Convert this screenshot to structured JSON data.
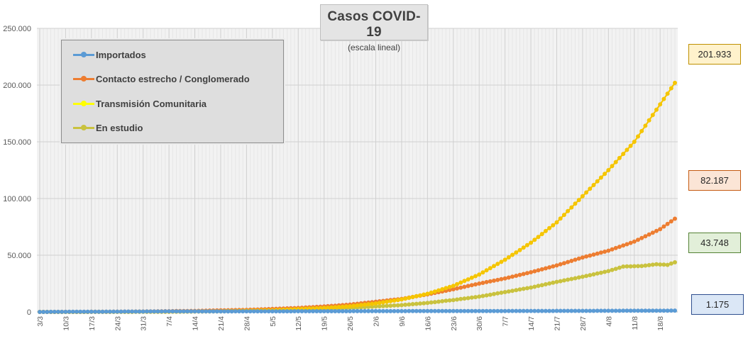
{
  "chart_data": {
    "type": "line",
    "title": "Casos COVID-19",
    "subtitle": "(escala lineal)",
    "xlabel": "",
    "ylabel": "",
    "ylim": [
      0,
      250000
    ],
    "y_ticks": [
      0,
      50000,
      100000,
      150000,
      200000,
      250000
    ],
    "y_tick_labels": [
      "0",
      "50.000",
      "100.000",
      "150.000",
      "200.000",
      "250.000"
    ],
    "x_tick_labels": [
      "3/3",
      "10/3",
      "17/3",
      "24/3",
      "31/3",
      "7/4",
      "14/4",
      "21/4",
      "28/4",
      "5/5",
      "12/5",
      "19/5",
      "26/5",
      "2/6",
      "9/6",
      "16/6",
      "23/6",
      "30/6",
      "7/7",
      "14/7",
      "21/7",
      "28/7",
      "4/8",
      "11/8",
      "18/8"
    ],
    "x_start": "3/3",
    "x_end": "22/8",
    "num_days": 173,
    "grid": true,
    "legend_position": "top-left",
    "series": [
      {
        "name": "Importados",
        "color": "#5b9bd5",
        "last_value_label": "1.175",
        "last_value_bg": "#dbe7f6",
        "last_value_border": "#2f4f8f",
        "anchors": [
          [
            0,
            0
          ],
          [
            20,
            250
          ],
          [
            35,
            420
          ],
          [
            50,
            520
          ],
          [
            70,
            600
          ],
          [
            90,
            680
          ],
          [
            110,
            760
          ],
          [
            130,
            860
          ],
          [
            150,
            960
          ],
          [
            172,
            1175
          ]
        ]
      },
      {
        "name": "Contacto estrecho / Conglomerado",
        "color": "#ed7d31",
        "last_value_label": "82.187",
        "last_value_bg": "#fbe5d6",
        "last_value_border": "#c55a11",
        "anchors": [
          [
            0,
            0
          ],
          [
            14,
            100
          ],
          [
            28,
            400
          ],
          [
            42,
            900
          ],
          [
            56,
            1800
          ],
          [
            63,
            2600
          ],
          [
            70,
            3500
          ],
          [
            77,
            4800
          ],
          [
            84,
            6500
          ],
          [
            91,
            9000
          ],
          [
            98,
            11500
          ],
          [
            105,
            15500
          ],
          [
            112,
            20000
          ],
          [
            119,
            25000
          ],
          [
            126,
            29500
          ],
          [
            133,
            35000
          ],
          [
            140,
            41000
          ],
          [
            147,
            48000
          ],
          [
            154,
            54000
          ],
          [
            161,
            62000
          ],
          [
            168,
            73000
          ],
          [
            172,
            82187
          ]
        ]
      },
      {
        "name": "Transmisión Comunitaria",
        "color": "#f5c500",
        "last_value_label": "201.933",
        "last_value_bg": "#fff2cc",
        "last_value_border": "#bf9000",
        "anchors": [
          [
            0,
            0
          ],
          [
            21,
            50
          ],
          [
            35,
            200
          ],
          [
            49,
            600
          ],
          [
            63,
            1500
          ],
          [
            77,
            3500
          ],
          [
            84,
            5000
          ],
          [
            91,
            7500
          ],
          [
            98,
            11000
          ],
          [
            105,
            16000
          ],
          [
            112,
            23000
          ],
          [
            119,
            33000
          ],
          [
            126,
            46000
          ],
          [
            133,
            61000
          ],
          [
            140,
            79000
          ],
          [
            147,
            102000
          ],
          [
            154,
            125000
          ],
          [
            161,
            150000
          ],
          [
            168,
            183000
          ],
          [
            172,
            201933
          ]
        ]
      },
      {
        "name": "En estudio",
        "color": "#c9c23e",
        "last_value_label": "43.748",
        "last_value_bg": "#e2efd9",
        "last_value_border": "#548235",
        "anchors": [
          [
            0,
            0
          ],
          [
            21,
            50
          ],
          [
            35,
            200
          ],
          [
            49,
            500
          ],
          [
            63,
            1000
          ],
          [
            77,
            2500
          ],
          [
            84,
            3500
          ],
          [
            91,
            4800
          ],
          [
            98,
            6000
          ],
          [
            105,
            8000
          ],
          [
            112,
            10500
          ],
          [
            119,
            13500
          ],
          [
            126,
            17500
          ],
          [
            133,
            21500
          ],
          [
            140,
            26500
          ],
          [
            147,
            31000
          ],
          [
            154,
            36000
          ],
          [
            158,
            40000
          ],
          [
            163,
            40500
          ],
          [
            167,
            42000
          ],
          [
            170,
            41500
          ],
          [
            172,
            43748
          ]
        ]
      }
    ]
  }
}
